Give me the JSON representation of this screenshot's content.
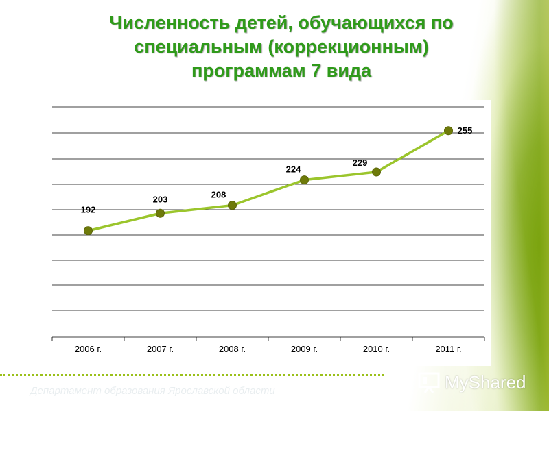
{
  "title": "Численность детей, обучающихся по\nспециальным (коррекционным)\nпрограммам 7 вида",
  "chart_data": {
    "type": "line",
    "categories": [
      "2006 г.",
      "2007 г.",
      "2008 г.",
      "2009 г.",
      "2010 г.",
      "2011 г."
    ],
    "series": [
      {
        "values": [
          192,
          203,
          208,
          224,
          229,
          255
        ]
      }
    ],
    "data_labels": [
      "192",
      "203",
      "208",
      "224",
      "229",
      "255"
    ],
    "ylim": [
      125,
      270
    ],
    "grid": true,
    "legend": "none",
    "colors": {
      "line": "#9bc52c",
      "marker": "#6e7a0a",
      "grid": "#000000"
    }
  },
  "footer": {
    "text": "Департамент образования Ярославской области"
  },
  "logo": {
    "text": "MyShared",
    "icon": "presentation-board-icon"
  }
}
